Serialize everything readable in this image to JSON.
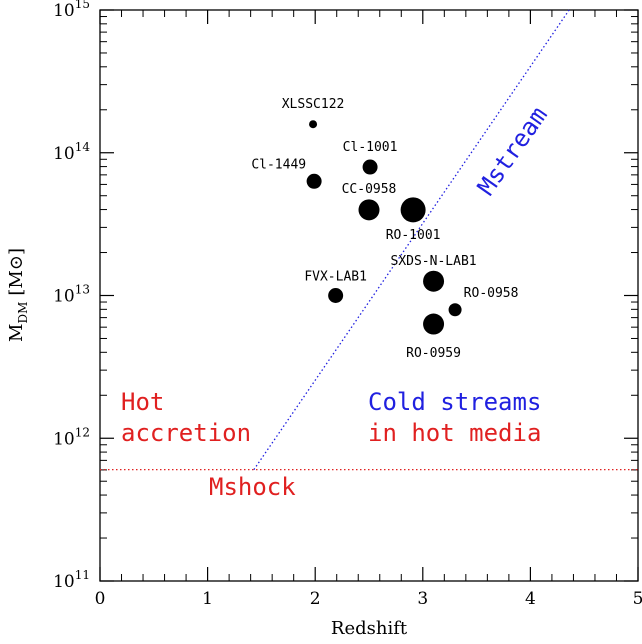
{
  "chart_data": {
    "type": "scatter",
    "xlabel": "Redshift",
    "ylabel": "M",
    "ylabel_sub": "DM",
    "ylabel_unit": "[M⊙]",
    "xlim": [
      0,
      5
    ],
    "ylim_log10": [
      11,
      15
    ],
    "y_scale": "log",
    "x_ticks": [
      0,
      1,
      2,
      3,
      4,
      5
    ],
    "y_tick_exponents": [
      11,
      12,
      13,
      14,
      15
    ],
    "y_tick_base": "10",
    "points": [
      {
        "name": "XLSSC122",
        "x": 1.98,
        "y_log10": 14.2,
        "size": "small"
      },
      {
        "name": "Cl-1001",
        "x": 2.51,
        "y_log10": 13.9,
        "size": "medium"
      },
      {
        "name": "Cl-1449",
        "x": 1.99,
        "y_log10": 13.8,
        "size": "medium"
      },
      {
        "name": "CC-0958",
        "x": 2.5,
        "y_log10": 13.6,
        "size": "large"
      },
      {
        "name": "RO-1001",
        "x": 2.91,
        "y_log10": 13.6,
        "size": "xlarge"
      },
      {
        "name": "SXDS-N-LAB1",
        "x": 3.1,
        "y_log10": 13.1,
        "size": "large"
      },
      {
        "name": "FVX-LAB1",
        "x": 2.19,
        "y_log10": 13.0,
        "size": "medium"
      },
      {
        "name": "RO-0958",
        "x": 3.3,
        "y_log10": 12.9,
        "size": "small-medium"
      },
      {
        "name": "RO-0959",
        "x": 3.1,
        "y_log10": 12.8,
        "size": "large"
      }
    ],
    "lines": [
      {
        "name": "Mshock",
        "color": "#e02020",
        "style": "dotted",
        "x": [
          0,
          5
        ],
        "y_log10": [
          11.78,
          11.78
        ]
      },
      {
        "name": "Mstream",
        "color": "#2020e0",
        "style": "dotted",
        "x": [
          1.43,
          4.36
        ],
        "y_log10": [
          11.78,
          15.0
        ]
      }
    ],
    "annotations": [
      {
        "id": "hot",
        "lines": [
          "Hot",
          "accretion"
        ],
        "color": "#e02020"
      },
      {
        "id": "cold",
        "lines": [
          "Cold streams",
          "in hot media"
        ],
        "colors": [
          "#2020e0",
          "#e02020"
        ]
      },
      {
        "id": "mshock",
        "text": "Mshock",
        "color": "#e02020"
      },
      {
        "id": "mstream",
        "text": "Mstream",
        "color": "#2020e0"
      }
    ]
  }
}
